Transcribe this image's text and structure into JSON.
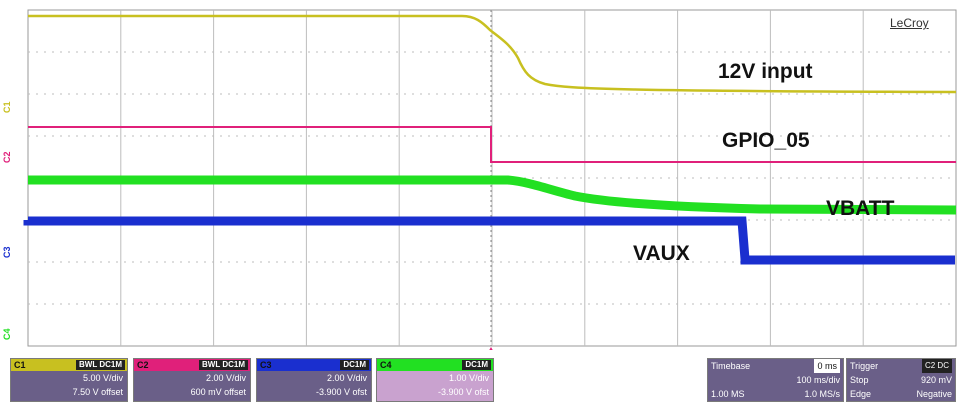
{
  "brand": "LeCroy",
  "annotations": {
    "input12v": "12V input",
    "gpio": "GPIO_05",
    "vbatt": "VBATT",
    "vaux": "VAUX"
  },
  "channels": [
    {
      "label": "C1",
      "color": "#c8c020"
    },
    {
      "label": "C2",
      "color": "#e0207a"
    },
    {
      "label": "C3",
      "color": "#1a2fcf"
    },
    {
      "label": "C4",
      "color": "#22e022"
    }
  ],
  "channel_boxes": [
    {
      "name": "C1",
      "tag": "BWL DC1M",
      "scale": "5.00 V/div",
      "offset": "7.50 V offset",
      "header_color": "#c8c020"
    },
    {
      "name": "C2",
      "tag": "BWL DC1M",
      "scale": "2.00 V/div",
      "offset": "600 mV offset",
      "header_color": "#e0207a"
    },
    {
      "name": "C3",
      "tag": "DC1M",
      "scale": "2.00 V/div",
      "offset": "-3.900 V ofst",
      "header_color": "#1a2fcf"
    },
    {
      "name": "C4",
      "tag": "DC1M",
      "scale": "1.00 V/div",
      "offset": "-3.900 V ofst",
      "header_color": "#22e022"
    }
  ],
  "timebase": {
    "label": "Timebase",
    "delay": "0 ms",
    "div": "100 ms/div",
    "points": "1.00 MS",
    "rate": "1.0 MS/s"
  },
  "trigger": {
    "label": "Trigger",
    "tag": "C2 DC",
    "mode": "Stop",
    "level": "920 mV",
    "type": "Edge",
    "slope": "Negative"
  },
  "colors": {
    "grid": "#bdbdbd",
    "plot_bg": "#ffffff",
    "trigger_marker": "#e0207a"
  }
}
